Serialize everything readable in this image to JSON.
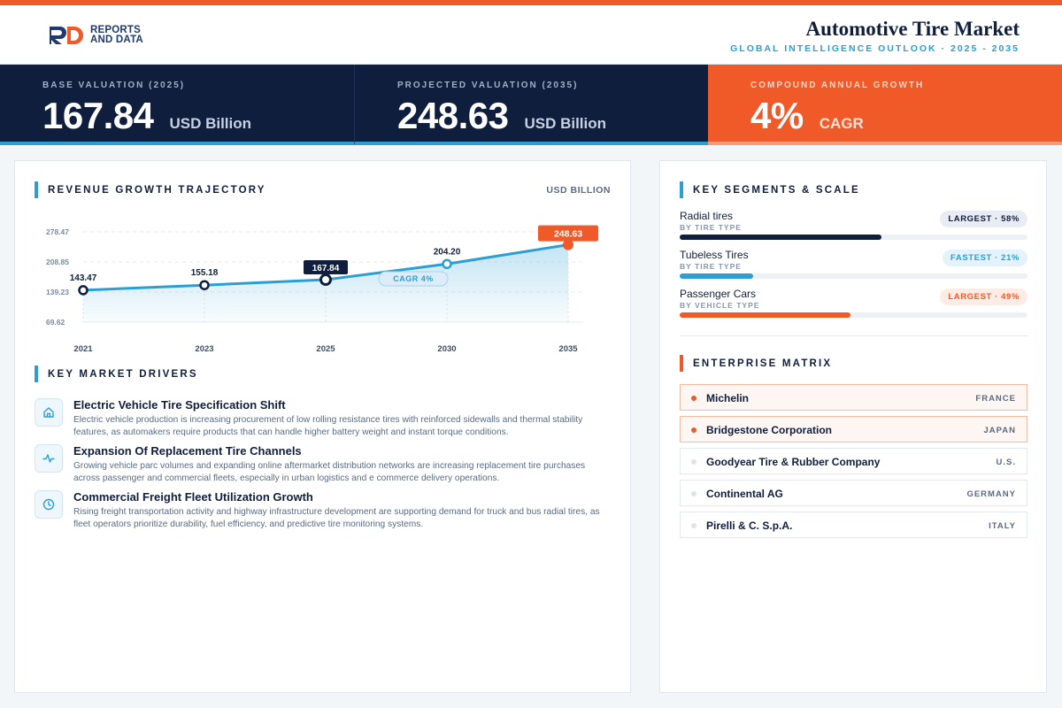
{
  "header": {
    "logo_line1": "REPORTS",
    "logo_line2": "AND DATA",
    "title": "Automotive Tire Market",
    "subtitle": "GLOBAL INTELLIGENCE OUTLOOK  ·  2025 - 2035"
  },
  "kpis": [
    {
      "label": "BASE VALUATION (2025)",
      "value": "167.84",
      "unit": "USD Billion"
    },
    {
      "label": "PROJECTED VALUATION (2035)",
      "value": "248.63",
      "unit": "USD Billion"
    },
    {
      "label": "COMPOUND ANNUAL GROWTH",
      "value": "4%",
      "unit": "CAGR"
    }
  ],
  "revenue": {
    "section_title": "REVENUE GROWTH TRAJECTORY",
    "unit_tag": "USD BILLION"
  },
  "chart_data": {
    "type": "line",
    "title": "REVENUE GROWTH TRAJECTORY",
    "xlabel": "",
    "ylabel": "USD BILLION",
    "categories": [
      "2021",
      "2023",
      "2025",
      "2030",
      "2035"
    ],
    "values": [
      143.47,
      155.18,
      167.84,
      204.2,
      248.63
    ],
    "value_labels": [
      "143.47",
      "155.18",
      "167.84",
      "204.20",
      "248.63"
    ],
    "y_ticks": [
      "278.47",
      "208.85",
      "139.23",
      "69.62"
    ],
    "ylim": [
      69.62,
      278.47
    ],
    "annotation": "CAGR 4%",
    "grid": true,
    "colors": {
      "line": "#2b9fd4",
      "highlight": "#f05a28",
      "navy": "#0f1e3c"
    }
  },
  "drivers": {
    "section_title": "KEY MARKET DRIVERS",
    "items": [
      {
        "icon": "home-icon",
        "title": "Electric Vehicle Tire Specification Shift",
        "desc": "Electric vehicle production is increasing procurement of low rolling resistance tires with reinforced sidewalls and thermal stability features, as automakers require products that can handle higher battery weight and instant torque conditions."
      },
      {
        "icon": "activity-icon",
        "title": "Expansion Of Replacement Tire Channels",
        "desc": "Growing vehicle parc volumes and expanding online aftermarket distribution networks are increasing replacement tire purchases across passenger and commercial fleets, especially in urban logistics and e commerce delivery operations."
      },
      {
        "icon": "clock-icon",
        "title": "Commercial Freight Fleet Utilization Growth",
        "desc": "Rising freight transportation activity and highway infrastructure development are supporting demand for truck and bus radial tires, as fleet operators prioritize durability, fuel efficiency, and predictive tire monitoring systems."
      }
    ]
  },
  "segments": {
    "section_title": "KEY SEGMENTS & SCALE",
    "items": [
      {
        "name": "Radial tires",
        "sub": "BY TIRE TYPE",
        "badge": "LARGEST · 58%",
        "share": 0.58,
        "color": "#0f1e3c"
      },
      {
        "name": "Tubeless Tires",
        "sub": "BY TIRE TYPE",
        "badge": "FASTEST · 21%",
        "share": 0.21,
        "color": "#2b9fd4"
      },
      {
        "name": "Passenger Cars",
        "sub": "BY VEHICLE TYPE",
        "badge": "LARGEST · 49%",
        "share": 0.49,
        "color": "#f05a28"
      }
    ]
  },
  "enterprise": {
    "section_title": "ENTERPRISE MATRIX",
    "companies": [
      {
        "name": "Michelin",
        "country": "FRANCE"
      },
      {
        "name": "Bridgestone Corporation",
        "country": "JAPAN"
      },
      {
        "name": "Goodyear Tire & Rubber Company",
        "country": "U.S."
      },
      {
        "name": "Continental AG",
        "country": "GERMANY"
      },
      {
        "name": "Pirelli & C. S.p.A.",
        "country": "ITALY"
      }
    ]
  }
}
